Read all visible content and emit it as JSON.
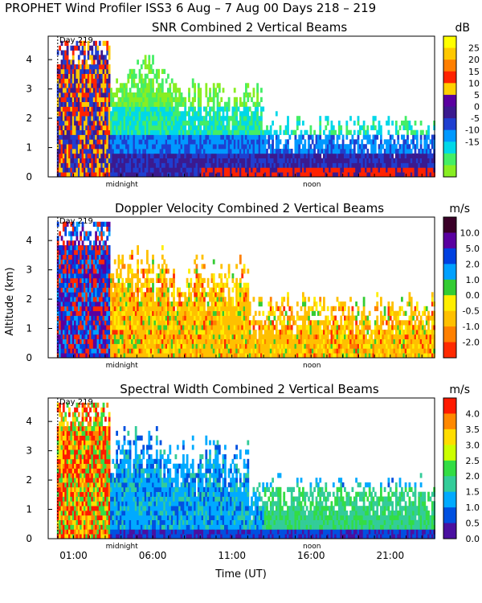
{
  "header": {
    "title": "PROPHET Wind Profiler ISS3    6 Aug –  7 Aug 00 Days 218 – 219"
  },
  "axes": {
    "ylabel": "Altitude (km)",
    "xlabel": "Time (UT)",
    "y_ticks": [
      0,
      1,
      2,
      3,
      4
    ],
    "ylim": [
      0,
      4.8
    ],
    "x_ticks": [
      {
        "label": "01:00",
        "hour": 1
      },
      {
        "label": "06:00",
        "hour": 6
      },
      {
        "label": "11:00",
        "hour": 11
      },
      {
        "label": "16:00",
        "hour": 16
      },
      {
        "label": "21:00",
        "hour": 21
      }
    ],
    "xlim_hours": [
      -0.6,
      23.8
    ],
    "markers": [
      {
        "label": "midnight",
        "hour": 4.05
      },
      {
        "label": "noon",
        "hour": 16.05
      }
    ],
    "day_label": "Day 219",
    "day_hour": 0.0
  },
  "chart_data": [
    {
      "type": "heatmap",
      "title": "SNR Combined 2 Vertical Beams",
      "unit": "dB",
      "colorbar_labels": [
        "25",
        "20",
        "15",
        "10",
        "5",
        "0",
        "-5",
        "-10",
        "-15"
      ],
      "colorbar_colors": [
        "#ffff00",
        "#ffc800",
        "#ff7f00",
        "#ff2200",
        "#ffd000",
        "#5a00a0",
        "#3b1a8f",
        "#1f3fd0",
        "#0099ff",
        "#00d8e8",
        "#44ee66",
        "#88ee22"
      ],
      "colorbar_levels": [
        30,
        25,
        20,
        15,
        10,
        5,
        0,
        -5,
        -10,
        -15
      ]
    },
    {
      "type": "heatmap",
      "title": "Doppler Velocity Combined 2 Vertical Beams",
      "unit": "m/s",
      "colorbar_labels": [
        "10.0",
        "5.0",
        "2.0",
        "1.0",
        "0.0",
        "-0.5",
        "-1.0",
        "-2.0"
      ],
      "colorbar_colors": [
        "#3a0028",
        "#5a00a0",
        "#0040e0",
        "#00a0ff",
        "#33cc33",
        "#ffee00",
        "#ffc000",
        "#ff8000",
        "#ff2a00"
      ]
    },
    {
      "type": "heatmap",
      "title": "Spectral Width Combined 2 Vertical Beams",
      "unit": "m/s",
      "colorbar_labels": [
        "4.0",
        "3.5",
        "3.0",
        "2.5",
        "2.0",
        "1.5",
        "1.0",
        "0.5",
        "0.0"
      ],
      "colorbar_colors": [
        "#ff1a00",
        "#ff8800",
        "#ffdd00",
        "#ccff00",
        "#33dd44",
        "#33cc99",
        "#00aaff",
        "#0050e0",
        "#4a10a0"
      ]
    }
  ]
}
